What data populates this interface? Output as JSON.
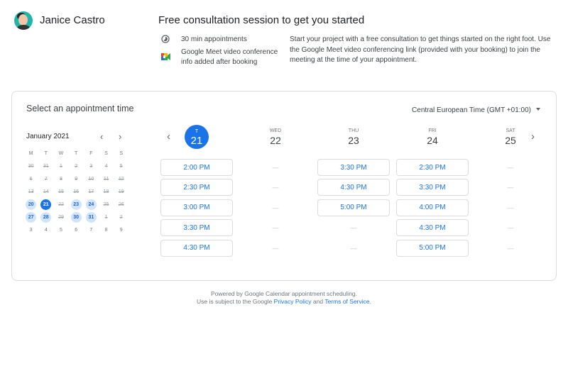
{
  "host": {
    "name": "Janice Castro"
  },
  "event": {
    "title": "Free consultation session to get you started",
    "duration": "30 min appointments",
    "conference_line1": "Google Meet video conference",
    "conference_line2": "info added after booking",
    "description": "Start your project with a free consultation to get things started on the right foot. Use the Google Meet video conferencing link (provided with your booking) to join the meeting at the time of your appointment."
  },
  "scheduler": {
    "heading": "Select an appointment time",
    "timezone": "Central European Time (GMT +01:00)"
  },
  "mini_calendar": {
    "month": "January 2021",
    "weekdays": [
      "M",
      "T",
      "W",
      "T",
      "F",
      "S",
      "S"
    ],
    "days": [
      {
        "d": "30",
        "s": "st"
      },
      {
        "d": "31",
        "s": "st"
      },
      {
        "d": "1",
        "s": "st"
      },
      {
        "d": "2",
        "s": "st"
      },
      {
        "d": "3",
        "s": "st"
      },
      {
        "d": "4",
        "s": "st"
      },
      {
        "d": "5",
        "s": "st"
      },
      {
        "d": "6",
        "s": "st"
      },
      {
        "d": "7",
        "s": "st"
      },
      {
        "d": "8",
        "s": "st"
      },
      {
        "d": "9",
        "s": "st"
      },
      {
        "d": "10",
        "s": "st"
      },
      {
        "d": "11",
        "s": "st"
      },
      {
        "d": "12",
        "s": "st"
      },
      {
        "d": "13",
        "s": "st"
      },
      {
        "d": "14",
        "s": "st"
      },
      {
        "d": "15",
        "s": "st"
      },
      {
        "d": "16",
        "s": "st"
      },
      {
        "d": "17",
        "s": "st"
      },
      {
        "d": "18",
        "s": "st"
      },
      {
        "d": "19",
        "s": "st"
      },
      {
        "d": "20",
        "s": "av"
      },
      {
        "d": "21",
        "s": "cur"
      },
      {
        "d": "22",
        "s": "st"
      },
      {
        "d": "23",
        "s": "av"
      },
      {
        "d": "24",
        "s": "av"
      },
      {
        "d": "25",
        "s": "st"
      },
      {
        "d": "26",
        "s": "st"
      },
      {
        "d": "27",
        "s": "av"
      },
      {
        "d": "28",
        "s": "av"
      },
      {
        "d": "29",
        "s": "st"
      },
      {
        "d": "30",
        "s": "av"
      },
      {
        "d": "31",
        "s": "av"
      },
      {
        "d": "1",
        "s": "st"
      },
      {
        "d": "2",
        "s": "st"
      },
      {
        "d": "3",
        "s": ""
      },
      {
        "d": "4",
        "s": ""
      },
      {
        "d": "5",
        "s": ""
      },
      {
        "d": "6",
        "s": ""
      },
      {
        "d": "7",
        "s": ""
      },
      {
        "d": "8",
        "s": ""
      },
      {
        "d": "9",
        "s": ""
      }
    ]
  },
  "days": [
    {
      "dow": "T",
      "num": "21",
      "today": true,
      "slots": [
        "2:00 PM",
        "2:30 PM",
        "3:00 PM",
        "3:30 PM",
        "4:30 PM"
      ]
    },
    {
      "dow": "WED",
      "num": "22",
      "slots": [
        "—",
        "—",
        "—",
        "—",
        "—"
      ]
    },
    {
      "dow": "THU",
      "num": "23",
      "slots": [
        "3:30 PM",
        "4:30 PM",
        "5:00 PM",
        "—",
        "—"
      ]
    },
    {
      "dow": "FRI",
      "num": "24",
      "slots": [
        "2:30 PM",
        "3:30 PM",
        "4:00 PM",
        "4:30 PM",
        "5:00 PM"
      ]
    },
    {
      "dow": "SAT",
      "num": "25",
      "slots": [
        "—",
        "—",
        "—",
        "—",
        "—"
      ]
    }
  ],
  "footer": {
    "line1": "Powered by Google Calendar appointment scheduling.",
    "line2_prefix": "Use is subject to the Google ",
    "privacy": "Privacy Policy",
    "and": " and ",
    "terms": "Terms of Service",
    "end": "."
  }
}
